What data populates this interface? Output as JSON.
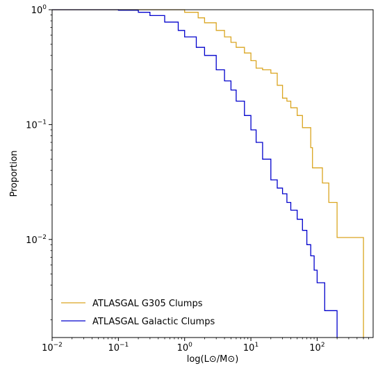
{
  "chart_data": {
    "type": "line",
    "drawstyle": "steps",
    "title": "",
    "xlabel": "log(L⊙/M⊙)",
    "ylabel": "Proportion",
    "xscale": "log",
    "yscale": "log",
    "xlim": [
      0.01,
      700
    ],
    "ylim": [
      0.0014,
      1
    ],
    "grid": false,
    "legend_position": "lower-left",
    "x_ticks": [
      {
        "value": 0.01,
        "base": "10",
        "exp": "−2"
      },
      {
        "value": 0.1,
        "base": "10",
        "exp": "−1"
      },
      {
        "value": 1,
        "base": "10",
        "exp": "0"
      },
      {
        "value": 10,
        "base": "10",
        "exp": "1"
      },
      {
        "value": 100,
        "base": "10",
        "exp": "2"
      }
    ],
    "y_ticks": [
      {
        "value": 1,
        "base": "10",
        "exp": "0"
      },
      {
        "value": 0.1,
        "base": "10",
        "exp": "−1"
      },
      {
        "value": 0.01,
        "base": "10",
        "exp": "−2"
      }
    ],
    "series": [
      {
        "name": "ATLASGAL G305 Clumps",
        "color": "#DAA520",
        "x": [
          0.01,
          0.5,
          1.0,
          1.6,
          2.0,
          3.0,
          4.0,
          5.0,
          6.0,
          8.0,
          10.0,
          12.0,
          15.0,
          20.0,
          25.0,
          30.0,
          35.0,
          40.0,
          50.0,
          60.0,
          70.0,
          80.0,
          85.0,
          100.0,
          120.0,
          150.0,
          200.0,
          500.0,
          500.0
        ],
        "y": [
          1.0,
          1.0,
          0.95,
          0.85,
          0.77,
          0.66,
          0.58,
          0.52,
          0.47,
          0.42,
          0.36,
          0.31,
          0.3,
          0.28,
          0.22,
          0.17,
          0.16,
          0.14,
          0.12,
          0.094,
          0.094,
          0.063,
          0.042,
          0.042,
          0.031,
          0.021,
          0.0104,
          0.0104,
          0.0014
        ]
      },
      {
        "name": "ATLASGAL Galactic Clumps",
        "color": "#0000CC",
        "x": [
          0.01,
          0.1,
          0.2,
          0.3,
          0.5,
          0.8,
          1.0,
          1.5,
          2.0,
          3.0,
          4.0,
          5.0,
          6.0,
          8.0,
          10.0,
          12.0,
          15.0,
          20.0,
          25.0,
          30.0,
          35.0,
          40.0,
          50.0,
          60.0,
          70.0,
          80.0,
          90.0,
          100.0,
          130.0,
          160.0,
          200.0,
          200.0
        ],
        "y": [
          1.0,
          0.99,
          0.95,
          0.89,
          0.78,
          0.66,
          0.58,
          0.47,
          0.4,
          0.3,
          0.24,
          0.2,
          0.16,
          0.12,
          0.09,
          0.07,
          0.05,
          0.033,
          0.028,
          0.025,
          0.021,
          0.018,
          0.015,
          0.012,
          0.009,
          0.0072,
          0.0054,
          0.0042,
          0.0024,
          0.0024,
          0.0016,
          0.0014
        ]
      }
    ]
  }
}
